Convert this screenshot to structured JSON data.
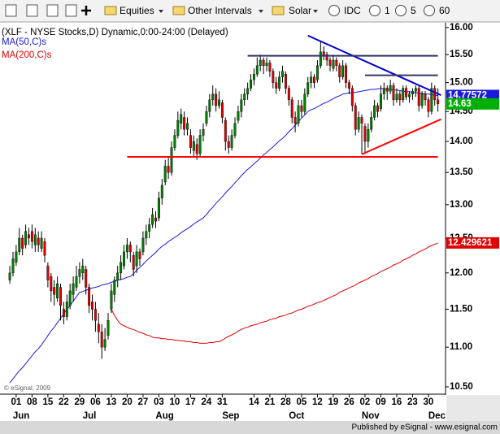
{
  "toolbar": {
    "folders": [
      "Equities",
      "Other Intervals",
      "Solar"
    ],
    "source": "IDC",
    "intervals": [
      "1",
      "5",
      "60"
    ]
  },
  "chart_data": {
    "type": "candlestick",
    "title": "(XLF - NYSE Stocks,D) Dynamic,0:00-24:00 (Delayed)",
    "watermark": "© eSignal, 2009",
    "up_color": "#008000",
    "down_color": "#e00000",
    "wick_color": "#000000",
    "last_price_color": "#00b000",
    "log_y": true,
    "grid": false,
    "xlim": [
      -3.1,
      137.4
    ],
    "ylim": [
      10.42,
      16.09
    ],
    "yticks": [
      {
        "value": 16,
        "label": "16.00"
      },
      {
        "value": 15.5,
        "label": "15.50"
      },
      {
        "value": 15,
        "label": "15.00"
      },
      {
        "value": 14.5,
        "label": "14.50"
      },
      {
        "value": 14,
        "label": "14.00"
      },
      {
        "value": 13.5,
        "label": "13.50"
      },
      {
        "value": 13,
        "label": "13.00"
      },
      {
        "value": 12.5,
        "label": "12.50"
      },
      {
        "value": 12,
        "label": "12.00"
      },
      {
        "value": 11.5,
        "label": "11.50"
      },
      {
        "value": 11,
        "label": "11.00"
      },
      {
        "value": 10.5,
        "label": "10.50"
      }
    ],
    "xticks": [
      {
        "value": 2,
        "label": "01"
      },
      {
        "value": 7,
        "label": "08"
      },
      {
        "value": 12,
        "label": "15"
      },
      {
        "value": 17,
        "label": "22"
      },
      {
        "value": 22,
        "label": "29"
      },
      {
        "value": 27,
        "label": "06"
      },
      {
        "value": 32,
        "label": "13"
      },
      {
        "value": 37,
        "label": "20"
      },
      {
        "value": 42,
        "label": "27"
      },
      {
        "value": 47,
        "label": "03"
      },
      {
        "value": 52,
        "label": "10"
      },
      {
        "value": 57,
        "label": "17"
      },
      {
        "value": 62,
        "label": "24"
      },
      {
        "value": 67,
        "label": "31"
      },
      {
        "value": 77,
        "label": "14"
      },
      {
        "value": 82,
        "label": "21"
      },
      {
        "value": 87,
        "label": "28"
      },
      {
        "value": 92,
        "label": "05"
      },
      {
        "value": 97,
        "label": "12"
      },
      {
        "value": 102,
        "label": "19"
      },
      {
        "value": 107,
        "label": "26"
      },
      {
        "value": 112,
        "label": "02"
      },
      {
        "value": 117,
        "label": "09"
      },
      {
        "value": 122,
        "label": "16"
      },
      {
        "value": 127,
        "label": "23"
      },
      {
        "value": 132,
        "label": "30"
      }
    ],
    "month_ticks": [
      {
        "value": 2,
        "label": "Jun"
      },
      {
        "value": 24,
        "label": "Jul"
      },
      {
        "value": 47,
        "label": "Aug"
      },
      {
        "value": 68,
        "label": "Sep"
      },
      {
        "value": 89,
        "label": "Oct"
      },
      {
        "value": 112,
        "label": "Nov"
      },
      {
        "value": 133,
        "label": "Dec"
      }
    ],
    "candles": [
      [
        11.9,
        12.1,
        11.85,
        12.0
      ],
      [
        12.0,
        12.3,
        11.95,
        12.2
      ],
      [
        12.15,
        12.4,
        12.1,
        12.3
      ],
      [
        12.3,
        12.65,
        12.25,
        12.5
      ],
      [
        12.5,
        12.55,
        12.25,
        12.35
      ],
      [
        12.4,
        12.7,
        12.35,
        12.6
      ],
      [
        12.55,
        12.65,
        12.4,
        12.5
      ],
      [
        12.6,
        12.7,
        12.35,
        12.45
      ],
      [
        12.4,
        12.65,
        12.3,
        12.55
      ],
      [
        12.5,
        12.6,
        12.3,
        12.4
      ],
      [
        12.35,
        12.6,
        12.3,
        12.5
      ],
      [
        12.45,
        12.5,
        12.15,
        12.25
      ],
      [
        12.1,
        12.15,
        11.8,
        11.9
      ],
      [
        11.95,
        12.0,
        11.6,
        11.75
      ],
      [
        11.8,
        11.9,
        11.55,
        11.7
      ],
      [
        11.65,
        11.95,
        11.6,
        11.85
      ],
      [
        11.8,
        11.85,
        11.35,
        11.55
      ],
      [
        11.5,
        11.6,
        11.3,
        11.4
      ],
      [
        11.4,
        11.7,
        11.35,
        11.6
      ],
      [
        11.55,
        11.85,
        11.5,
        11.75
      ],
      [
        11.7,
        11.95,
        11.6,
        11.85
      ],
      [
        11.8,
        12.1,
        11.75,
        11.95
      ],
      [
        11.95,
        12.15,
        11.85,
        12.05
      ],
      [
        12.0,
        12.2,
        11.9,
        12.1
      ],
      [
        12.05,
        12.1,
        11.7,
        11.8
      ],
      [
        11.8,
        11.85,
        11.45,
        11.55
      ],
      [
        11.6,
        11.7,
        11.35,
        11.5
      ],
      [
        11.5,
        11.6,
        11.2,
        11.35
      ],
      [
        11.3,
        11.45,
        11.05,
        11.2
      ],
      [
        11.2,
        11.3,
        10.85,
        11.0
      ],
      [
        11.0,
        11.25,
        10.95,
        11.1
      ],
      [
        11.15,
        11.45,
        11.1,
        11.35
      ],
      [
        11.5,
        11.85,
        11.45,
        11.75
      ],
      [
        11.7,
        11.95,
        11.6,
        11.9
      ],
      [
        11.9,
        12.1,
        11.8,
        12.0
      ],
      [
        12.0,
        12.25,
        11.9,
        12.15
      ],
      [
        12.1,
        12.4,
        12.05,
        12.3
      ],
      [
        12.3,
        12.5,
        12.2,
        12.4
      ],
      [
        12.4,
        12.45,
        12.15,
        12.3
      ],
      [
        12.25,
        12.3,
        11.95,
        12.05
      ],
      [
        12.1,
        12.4,
        12.0,
        12.3
      ],
      [
        12.3,
        12.35,
        12.1,
        12.2
      ],
      [
        12.3,
        12.6,
        12.25,
        12.5
      ],
      [
        12.5,
        12.7,
        12.4,
        12.6
      ],
      [
        12.6,
        12.8,
        12.5,
        12.7
      ],
      [
        12.7,
        12.95,
        12.65,
        12.85
      ],
      [
        12.8,
        12.9,
        12.65,
        12.75
      ],
      [
        12.8,
        13.2,
        12.75,
        13.1
      ],
      [
        13.1,
        13.4,
        13.0,
        13.3
      ],
      [
        13.35,
        13.7,
        13.3,
        13.6
      ],
      [
        13.6,
        13.75,
        13.4,
        13.5
      ],
      [
        13.5,
        14.0,
        13.45,
        13.9
      ],
      [
        13.9,
        14.2,
        13.85,
        14.1
      ],
      [
        14.1,
        14.5,
        14.05,
        14.35
      ],
      [
        14.3,
        14.55,
        14.2,
        14.45
      ],
      [
        14.4,
        14.5,
        14.1,
        14.2
      ],
      [
        14.2,
        14.4,
        14.1,
        14.3
      ],
      [
        14.1,
        14.2,
        13.8,
        13.9
      ],
      [
        13.85,
        14.1,
        13.75,
        14.0
      ],
      [
        13.95,
        14.05,
        13.7,
        13.8
      ],
      [
        13.8,
        14.2,
        13.75,
        14.1
      ],
      [
        14.1,
        14.3,
        14.0,
        14.2
      ],
      [
        14.3,
        14.6,
        14.25,
        14.5
      ],
      [
        14.5,
        14.8,
        14.4,
        14.7
      ],
      [
        14.7,
        14.95,
        14.6,
        14.8
      ],
      [
        14.8,
        14.9,
        14.5,
        14.6
      ],
      [
        14.6,
        14.85,
        14.55,
        14.7
      ],
      [
        14.65,
        14.7,
        14.3,
        14.4
      ],
      [
        14.35,
        14.4,
        13.85,
        14.0
      ],
      [
        14.0,
        14.1,
        13.8,
        13.9
      ],
      [
        13.9,
        14.2,
        13.85,
        14.1
      ],
      [
        14.1,
        14.4,
        14.05,
        14.3
      ],
      [
        14.35,
        14.6,
        14.3,
        14.5
      ],
      [
        14.5,
        14.8,
        14.4,
        14.7
      ],
      [
        14.7,
        14.9,
        14.6,
        14.8
      ],
      [
        14.8,
        15.0,
        14.7,
        14.9
      ],
      [
        14.9,
        15.15,
        14.85,
        15.05
      ],
      [
        15.05,
        15.25,
        14.95,
        15.15
      ],
      [
        15.15,
        15.45,
        15.1,
        15.3
      ],
      [
        15.3,
        15.5,
        15.2,
        15.4
      ],
      [
        15.4,
        15.45,
        15.15,
        15.3
      ],
      [
        15.3,
        15.45,
        15.2,
        15.35
      ],
      [
        15.35,
        15.4,
        15.1,
        15.2
      ],
      [
        15.2,
        15.25,
        14.9,
        15.0
      ],
      [
        15.0,
        15.1,
        14.8,
        14.9
      ],
      [
        14.9,
        15.2,
        14.85,
        15.1
      ],
      [
        15.1,
        15.3,
        15.0,
        15.2
      ],
      [
        15.15,
        15.2,
        14.8,
        14.9
      ],
      [
        14.9,
        14.95,
        14.6,
        14.7
      ],
      [
        14.7,
        14.75,
        14.3,
        14.4
      ],
      [
        14.4,
        14.5,
        14.15,
        14.3
      ],
      [
        14.3,
        14.7,
        14.25,
        14.6
      ],
      [
        14.6,
        14.7,
        14.4,
        14.5
      ],
      [
        14.5,
        14.9,
        14.45,
        14.8
      ],
      [
        14.8,
        15.1,
        14.75,
        15.0
      ],
      [
        15.0,
        15.2,
        14.9,
        15.1
      ],
      [
        15.1,
        15.15,
        14.9,
        15.0
      ],
      [
        15.05,
        15.4,
        15.0,
        15.3
      ],
      [
        15.3,
        15.75,
        15.25,
        15.55
      ],
      [
        15.55,
        15.65,
        15.4,
        15.5
      ],
      [
        15.5,
        15.55,
        15.3,
        15.4
      ],
      [
        15.4,
        15.45,
        15.2,
        15.3
      ],
      [
        15.25,
        15.5,
        15.2,
        15.4
      ],
      [
        15.4,
        15.45,
        15.2,
        15.3
      ],
      [
        15.3,
        15.35,
        15.0,
        15.1
      ],
      [
        15.1,
        15.4,
        15.05,
        15.3
      ],
      [
        15.3,
        15.35,
        14.9,
        15.0
      ],
      [
        15.0,
        15.05,
        14.8,
        14.9
      ],
      [
        14.9,
        14.95,
        14.5,
        14.6
      ],
      [
        14.6,
        14.65,
        14.1,
        14.2
      ],
      [
        14.2,
        14.5,
        14.15,
        14.4
      ],
      [
        14.4,
        14.45,
        13.8,
        14.3
      ],
      [
        14.25,
        14.3,
        13.8,
        14.0
      ],
      [
        14.0,
        14.3,
        13.9,
        14.2
      ],
      [
        14.2,
        14.5,
        14.15,
        14.4
      ],
      [
        14.4,
        14.7,
        14.35,
        14.6
      ],
      [
        14.6,
        14.65,
        14.4,
        14.5
      ],
      [
        14.55,
        14.95,
        14.5,
        14.8
      ],
      [
        14.8,
        15.0,
        14.7,
        14.9
      ],
      [
        14.9,
        14.95,
        14.7,
        14.85
      ],
      [
        14.85,
        15.05,
        14.8,
        14.95
      ],
      [
        14.95,
        15.0,
        14.6,
        14.7
      ],
      [
        14.7,
        14.9,
        14.65,
        14.8
      ],
      [
        14.8,
        14.85,
        14.6,
        14.7
      ],
      [
        14.7,
        14.95,
        14.65,
        14.9
      ],
      [
        14.9,
        14.95,
        14.7,
        14.75
      ],
      [
        14.75,
        14.85,
        14.65,
        14.8
      ],
      [
        14.8,
        14.9,
        14.7,
        14.85
      ],
      [
        14.85,
        14.95,
        14.75,
        14.9
      ],
      [
        14.9,
        14.95,
        14.5,
        14.6
      ],
      [
        14.6,
        14.85,
        14.55,
        14.8
      ],
      [
        14.8,
        14.85,
        14.6,
        14.7
      ],
      [
        14.7,
        14.75,
        14.4,
        14.5
      ],
      [
        14.5,
        15.0,
        14.45,
        14.9
      ],
      [
        14.9,
        14.95,
        14.6,
        14.7
      ],
      [
        14.7,
        14.9,
        14.5,
        14.63
      ]
    ],
    "series": [
      {
        "name": "MA(50,C)s",
        "color": "#1a1adc",
        "values": [
          10.55,
          10.6,
          10.65,
          10.7,
          10.74,
          10.79,
          10.84,
          10.89,
          10.94,
          10.98,
          11.03,
          11.09,
          11.15,
          11.21,
          11.26,
          11.32,
          11.38,
          11.44,
          11.5,
          11.55,
          11.61,
          11.67,
          11.73,
          11.74,
          11.76,
          11.77,
          11.79,
          11.8,
          11.81,
          11.83,
          11.84,
          11.85,
          11.87,
          11.88,
          11.9,
          11.91,
          11.92,
          11.94,
          11.95,
          11.99,
          12.04,
          12.08,
          12.12,
          12.17,
          12.21,
          12.25,
          12.29,
          12.34,
          12.38,
          12.41,
          12.45,
          12.48,
          12.51,
          12.54,
          12.58,
          12.61,
          12.64,
          12.67,
          12.71,
          12.74,
          12.77,
          12.8,
          12.85,
          12.91,
          12.96,
          13.02,
          13.07,
          13.12,
          13.18,
          13.23,
          13.28,
          13.34,
          13.39,
          13.45,
          13.5,
          13.55,
          13.59,
          13.64,
          13.68,
          13.73,
          13.78,
          13.82,
          13.87,
          13.91,
          13.96,
          14.01,
          14.05,
          14.1,
          14.16,
          14.21,
          14.27,
          14.33,
          14.39,
          14.44,
          14.5,
          14.53,
          14.55,
          14.58,
          14.61,
          14.64,
          14.66,
          14.69,
          14.72,
          14.75,
          14.77,
          14.8,
          14.81,
          14.82,
          14.82,
          14.83,
          14.84,
          14.85,
          14.86,
          14.87,
          14.88,
          14.88,
          14.89,
          14.9,
          14.89,
          14.89,
          14.88,
          14.87,
          14.87,
          14.86,
          14.85,
          14.84,
          14.84,
          14.83,
          14.82,
          14.82,
          14.81,
          14.8,
          14.8,
          14.79,
          14.78,
          14.77572
        ]
      },
      {
        "name": "MA(200,C)s",
        "color": "#e00000",
        "values": [
          null,
          null,
          null,
          null,
          null,
          null,
          null,
          null,
          null,
          null,
          null,
          null,
          null,
          null,
          null,
          null,
          null,
          null,
          null,
          null,
          null,
          null,
          null,
          null,
          null,
          null,
          null,
          null,
          null,
          null,
          null,
          null,
          11.5,
          11.42,
          11.35,
          11.3,
          11.28,
          11.26,
          11.24,
          11.23,
          11.21,
          11.19,
          11.18,
          11.16,
          11.15,
          11.13,
          11.12,
          11.12,
          11.11,
          11.11,
          11.1,
          11.1,
          11.09,
          11.09,
          11.08,
          11.08,
          11.07,
          11.07,
          11.06,
          11.06,
          11.05,
          11.05,
          11.05,
          11.06,
          11.06,
          11.07,
          11.07,
          11.09,
          11.12,
          11.14,
          11.16,
          11.18,
          11.21,
          11.23,
          11.25,
          11.26,
          11.28,
          11.29,
          11.3,
          11.32,
          11.33,
          11.34,
          11.36,
          11.37,
          11.38,
          11.4,
          11.41,
          11.42,
          11.44,
          11.45,
          11.47,
          11.49,
          11.5,
          11.52,
          11.54,
          11.55,
          11.57,
          11.59,
          11.6,
          11.62,
          11.64,
          11.66,
          11.68,
          11.7,
          11.73,
          11.75,
          11.77,
          11.79,
          11.81,
          11.83,
          11.86,
          11.88,
          11.9,
          11.92,
          11.95,
          11.97,
          11.99,
          12.02,
          12.04,
          12.06,
          12.08,
          12.11,
          12.13,
          12.15,
          12.18,
          12.2,
          12.22,
          12.25,
          12.27,
          12.3,
          12.32,
          12.34,
          12.37,
          12.39,
          12.41,
          12.429621
        ]
      }
    ],
    "drawings": [
      {
        "color": "#0000cc",
        "points": [
          [
            94,
            15.85
          ],
          [
            136,
            14.78
          ]
        ]
      },
      {
        "color": "#ff0000",
        "points": [
          [
            111,
            13.79
          ],
          [
            136,
            14.37
          ]
        ]
      },
      {
        "color": "#ff0000",
        "points": [
          [
            37,
            13.75
          ],
          [
            135,
            13.75
          ]
        ]
      },
      {
        "color": "#333366",
        "points": [
          [
            75,
            15.48
          ],
          [
            135,
            15.48
          ]
        ]
      },
      {
        "color": "#333366",
        "points": [
          [
            112,
            15.13
          ],
          [
            135,
            15.13
          ]
        ]
      }
    ]
  },
  "footer": "Published by eSignal - www.esignal.com"
}
